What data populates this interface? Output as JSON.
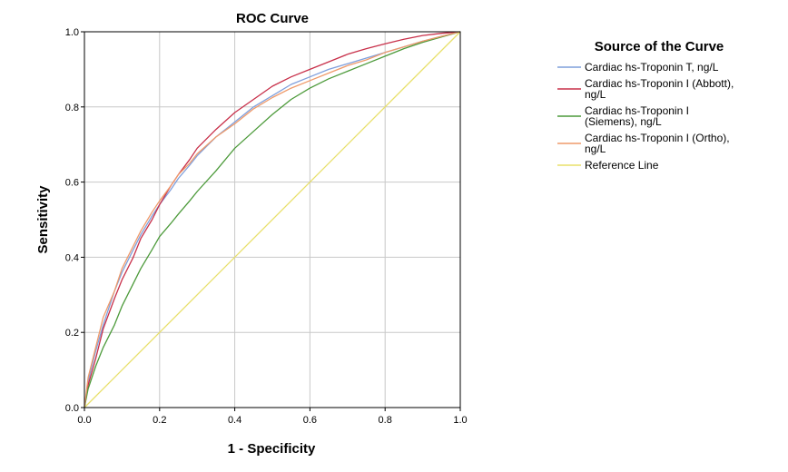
{
  "chart_data": {
    "type": "line",
    "title": "ROC Curve",
    "xlabel": "1 - Specificity",
    "ylabel": "Sensitivity",
    "xlim": [
      0,
      1
    ],
    "ylim": [
      0,
      1
    ],
    "xticks": [
      "0.0",
      "0.2",
      "0.4",
      "0.6",
      "0.8",
      "1.0"
    ],
    "yticks": [
      "0.0",
      "0.2",
      "0.4",
      "0.6",
      "0.8",
      "1.0"
    ],
    "grid": true,
    "legend_title": "Source of the Curve",
    "legend_position": "right",
    "series": [
      {
        "name": "Cardiac hs-Troponin T, ng/L",
        "label_lines": [
          "Cardiac hs-Troponin T, ng/L"
        ],
        "color": "#7f9fdc",
        "x": [
          0,
          0.01,
          0.03,
          0.05,
          0.08,
          0.1,
          0.13,
          0.15,
          0.18,
          0.2,
          0.23,
          0.25,
          0.28,
          0.3,
          0.35,
          0.4,
          0.45,
          0.5,
          0.55,
          0.6,
          0.65,
          0.7,
          0.75,
          0.8,
          0.85,
          0.9,
          0.95,
          1
        ],
        "y": [
          0,
          0.07,
          0.15,
          0.22,
          0.31,
          0.36,
          0.42,
          0.46,
          0.51,
          0.54,
          0.58,
          0.61,
          0.645,
          0.67,
          0.72,
          0.76,
          0.8,
          0.83,
          0.86,
          0.88,
          0.9,
          0.915,
          0.93,
          0.945,
          0.96,
          0.975,
          0.988,
          1
        ]
      },
      {
        "name": "Cardiac hs-Troponin I (Abbott), ng/L",
        "label_lines": [
          "Cardiac hs-Troponin I (Abbott),",
          "ng/L"
        ],
        "color": "#c8304a",
        "x": [
          0,
          0.01,
          0.03,
          0.05,
          0.08,
          0.1,
          0.13,
          0.15,
          0.18,
          0.2,
          0.23,
          0.25,
          0.28,
          0.3,
          0.35,
          0.4,
          0.45,
          0.5,
          0.55,
          0.6,
          0.65,
          0.7,
          0.75,
          0.8,
          0.85,
          0.9,
          0.95,
          1
        ],
        "y": [
          0,
          0.06,
          0.13,
          0.21,
          0.29,
          0.34,
          0.4,
          0.45,
          0.5,
          0.54,
          0.59,
          0.62,
          0.66,
          0.69,
          0.74,
          0.785,
          0.82,
          0.855,
          0.88,
          0.9,
          0.92,
          0.94,
          0.955,
          0.968,
          0.98,
          0.99,
          0.996,
          1
        ]
      },
      {
        "name": "Cardiac hs-Troponin I (Siemens), ng/L",
        "label_lines": [
          "Cardiac hs-Troponin I",
          "(Siemens), ng/L"
        ],
        "color": "#4c9a3a",
        "x": [
          0,
          0.01,
          0.03,
          0.05,
          0.08,
          0.1,
          0.13,
          0.15,
          0.18,
          0.2,
          0.23,
          0.25,
          0.28,
          0.3,
          0.35,
          0.4,
          0.45,
          0.5,
          0.55,
          0.6,
          0.65,
          0.7,
          0.75,
          0.8,
          0.85,
          0.9,
          0.95,
          1
        ],
        "y": [
          0,
          0.05,
          0.11,
          0.16,
          0.22,
          0.27,
          0.33,
          0.37,
          0.42,
          0.455,
          0.49,
          0.515,
          0.55,
          0.575,
          0.63,
          0.69,
          0.735,
          0.78,
          0.82,
          0.85,
          0.875,
          0.895,
          0.915,
          0.935,
          0.955,
          0.972,
          0.986,
          1
        ]
      },
      {
        "name": "Cardiac hs-Troponin I (Ortho), ng/L",
        "label_lines": [
          "Cardiac hs-Troponin I (Ortho),",
          "ng/L"
        ],
        "color": "#ef9a6a",
        "x": [
          0,
          0.01,
          0.03,
          0.05,
          0.08,
          0.1,
          0.13,
          0.15,
          0.18,
          0.2,
          0.23,
          0.25,
          0.28,
          0.3,
          0.35,
          0.4,
          0.45,
          0.5,
          0.55,
          0.6,
          0.65,
          0.7,
          0.75,
          0.8,
          0.85,
          0.9,
          0.95,
          1
        ],
        "y": [
          0,
          0.08,
          0.16,
          0.24,
          0.31,
          0.37,
          0.43,
          0.47,
          0.52,
          0.55,
          0.59,
          0.62,
          0.65,
          0.675,
          0.72,
          0.755,
          0.795,
          0.825,
          0.85,
          0.87,
          0.89,
          0.91,
          0.925,
          0.945,
          0.96,
          0.975,
          0.988,
          1
        ]
      },
      {
        "name": "Reference Line",
        "label_lines": [
          "Reference Line"
        ],
        "color": "#e8e06a",
        "x": [
          0,
          1
        ],
        "y": [
          0,
          1
        ]
      }
    ]
  }
}
